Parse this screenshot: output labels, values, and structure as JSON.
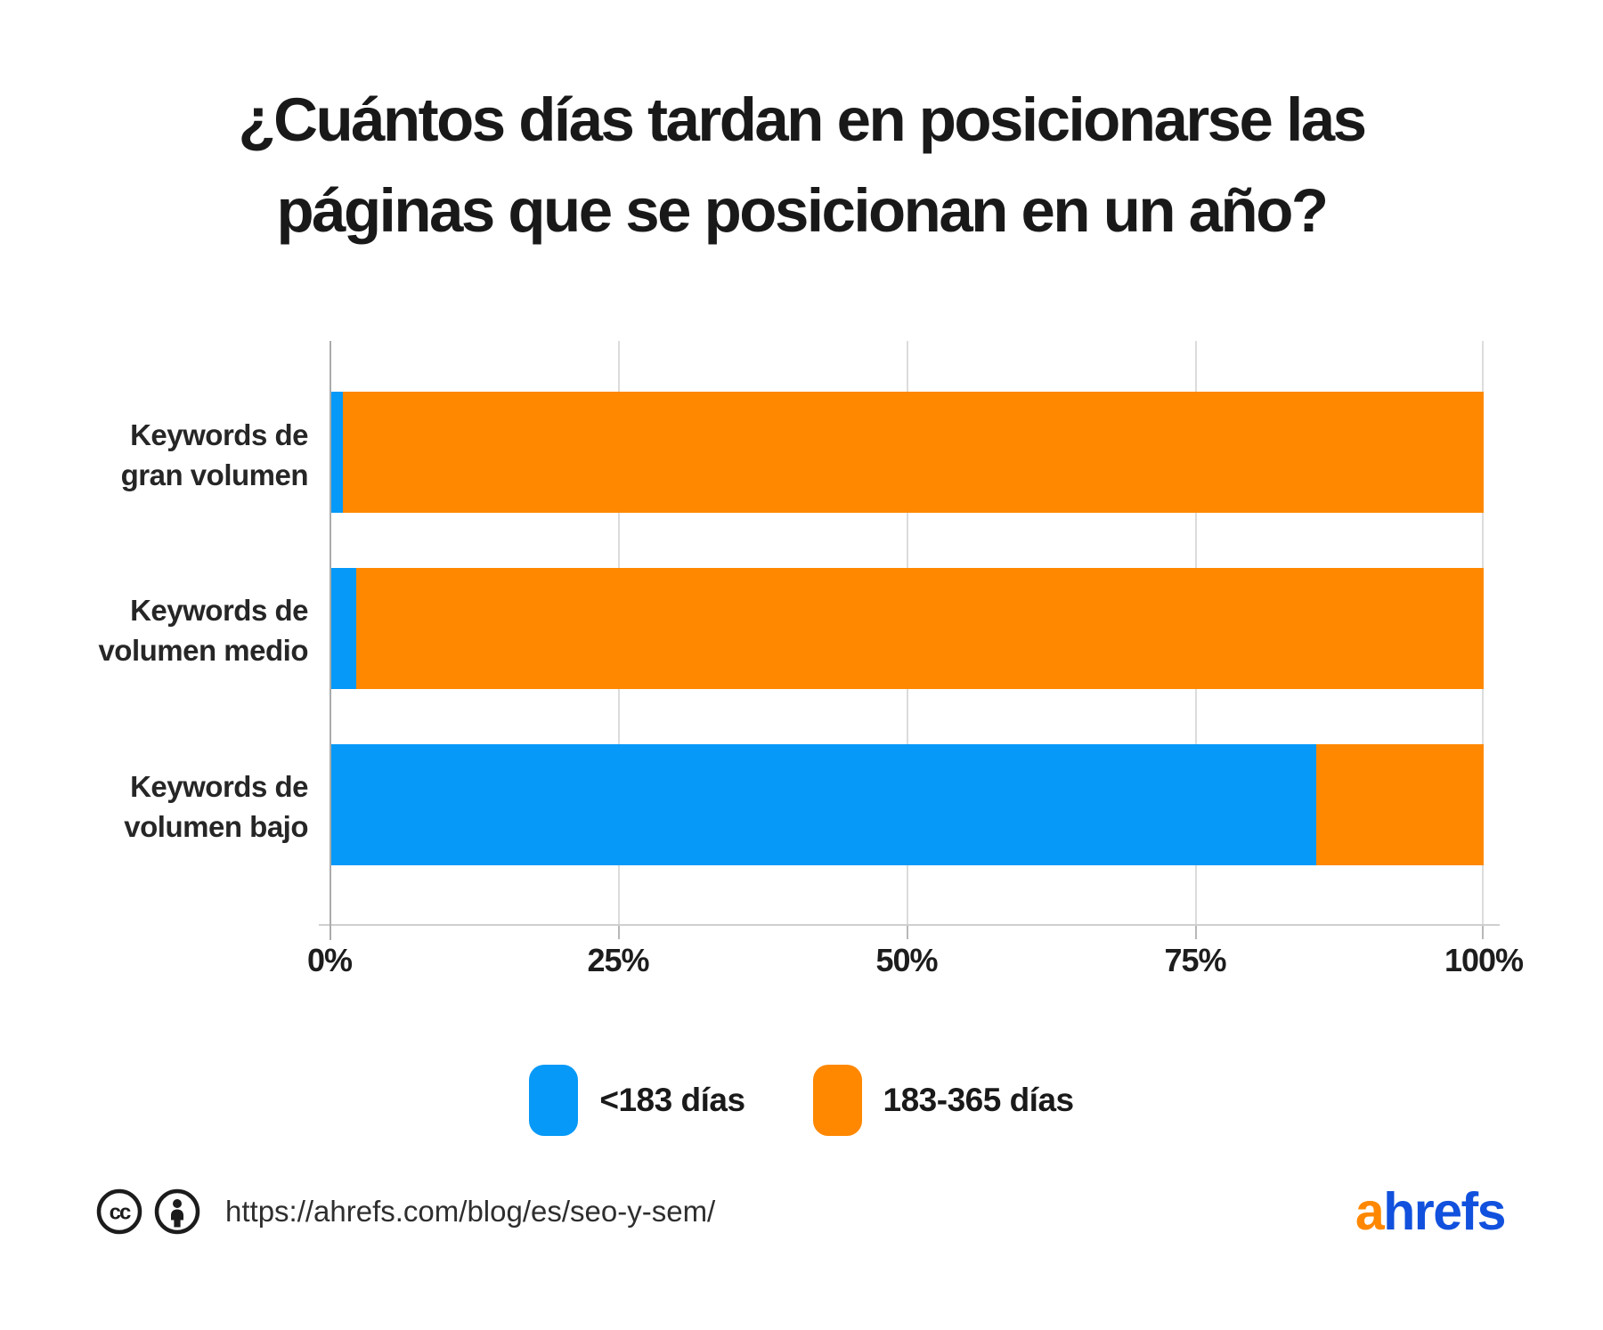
{
  "title": {
    "line1": "¿Cuántos días tardan en posicionarse las",
    "line2": "páginas que se posicionan en un año?"
  },
  "chart_data": {
    "type": "bar",
    "orientation": "horizontal",
    "stacked": true,
    "title": "¿Cuántos días tardan en posicionarse las páginas que se posicionan en un año?",
    "categories": [
      "Keywords de gran volumen",
      "Keywords de volumen medio",
      "Keywords de volumen bajo"
    ],
    "categories_lines": [
      [
        "Keywords de",
        "gran volumen"
      ],
      [
        "Keywords de",
        "volumen medio"
      ],
      [
        "Keywords de",
        "volumen bajo"
      ]
    ],
    "series": [
      {
        "name": "<183 días",
        "color": "#0699f7",
        "values": [
          1,
          2.2,
          85.5
        ]
      },
      {
        "name": "183-365 días",
        "color": "#ff8800",
        "values": [
          99,
          97.8,
          14.5
        ]
      }
    ],
    "xlabel": "",
    "ylabel": "",
    "xlim": [
      0,
      100
    ],
    "x_ticks": [
      "0%",
      "25%",
      "50%",
      "75%",
      "100%"
    ],
    "x_tick_positions": [
      0,
      25,
      50,
      75,
      100
    ],
    "grid": true,
    "legend_position": "bottom"
  },
  "legend": {
    "items": [
      {
        "label": "<183 días",
        "color": "#0699f7"
      },
      {
        "label": "183-365 días",
        "color": "#ff8800"
      }
    ]
  },
  "footer": {
    "icons": [
      "cc-icon",
      "attribution-icon"
    ],
    "url": "https://ahrefs.com/blog/es/seo-y-sem/",
    "logo": {
      "part1": "a",
      "part2": "hrefs",
      "part1_color": "#ff8800",
      "part2_color": "#1151dd"
    }
  }
}
